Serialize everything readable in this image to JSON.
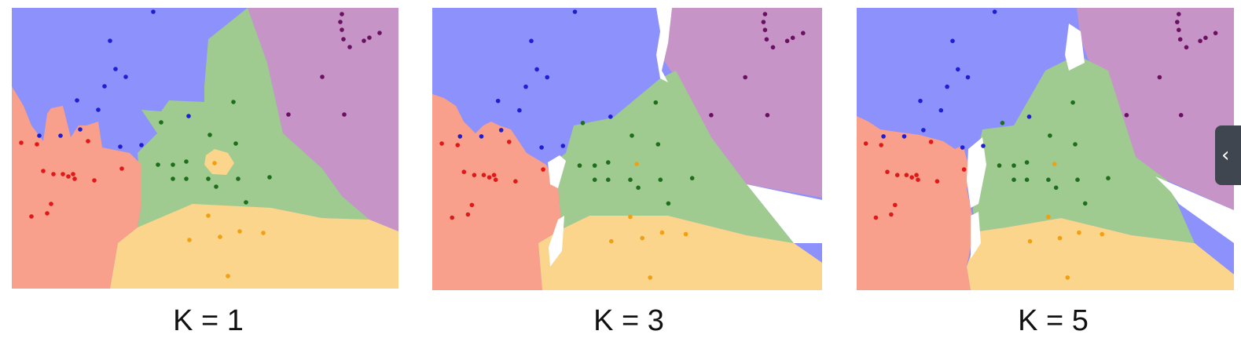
{
  "panels": [
    {
      "caption": "K = 1"
    },
    {
      "caption": "K = 3"
    },
    {
      "caption": "K = 5"
    }
  ],
  "colors": {
    "region_blue": "#8d91fb",
    "region_purple": "#c794c8",
    "region_green": "#9fca90",
    "region_red": "#f8a08b",
    "region_orange": "#fbd58c",
    "point_blue": "#1f1fd0",
    "point_purple": "#6a1060",
    "point_green": "#1e6e1e",
    "point_red": "#e01818",
    "point_orange": "#f0a010"
  },
  "side_tab": {
    "icon": "chevron-left-icon",
    "glyph": "‹"
  }
}
